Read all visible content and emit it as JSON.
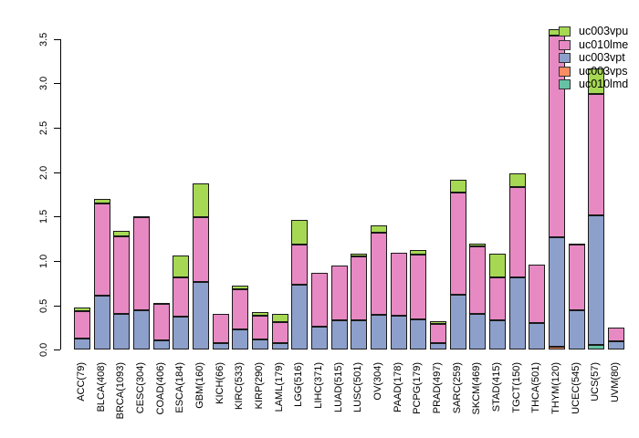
{
  "chart_data": {
    "type": "bar",
    "stacked": true,
    "title": "",
    "xlabel": "",
    "ylabel": "",
    "ylim": [
      0,
      3.5
    ],
    "ytick_labels": [
      "0.0",
      "0.5",
      "1.0",
      "1.5",
      "2.0",
      "2.5",
      "3.0",
      "3.5"
    ],
    "ytick_values": [
      0,
      0.5,
      1.0,
      1.5,
      2.0,
      2.5,
      3.0,
      3.5
    ],
    "grid": false,
    "categories": [
      "ACC(79)",
      "BLCA(408)",
      "BRCA(1093)",
      "CESC(304)",
      "COAD(406)",
      "ESCA(184)",
      "GBM(160)",
      "KICH(66)",
      "KIRC(533)",
      "KIRP(290)",
      "LAML(179)",
      "LGG(516)",
      "LIHC(371)",
      "LUAD(515)",
      "LUSC(501)",
      "OV(304)",
      "PAAD(178)",
      "PCPG(179)",
      "PRAD(497)",
      "SARC(259)",
      "SKCM(469)",
      "STAD(415)",
      "TGCT(150)",
      "THCA(501)",
      "THYM(120)",
      "UCEC(545)",
      "UCS(57)",
      "UVM(80)"
    ],
    "series": [
      {
        "name": "uc010lmd",
        "color": "#66C2A5",
        "values": [
          0,
          0,
          0,
          0,
          0,
          0,
          0,
          0,
          0,
          0,
          0,
          0,
          0,
          0,
          0,
          0,
          0,
          0,
          0,
          0,
          0,
          0,
          0,
          0,
          0,
          0,
          0.05,
          0
        ]
      },
      {
        "name": "uc003vps",
        "color": "#FC8D62",
        "values": [
          0,
          0,
          0,
          0,
          0,
          0,
          0,
          0,
          0,
          0,
          0,
          0,
          0,
          0,
          0,
          0,
          0,
          0,
          0,
          0,
          0,
          0,
          0,
          0,
          0.03,
          0,
          0,
          0
        ]
      },
      {
        "name": "uc003vpt",
        "color": "#8DA0CB",
        "values": [
          0.13,
          0.61,
          0.4,
          0.45,
          0.11,
          0.37,
          0.76,
          0.08,
          0.23,
          0.12,
          0.08,
          0.73,
          0.26,
          0.33,
          0.33,
          0.39,
          0.38,
          0.34,
          0.08,
          0.62,
          0.4,
          0.33,
          0.82,
          0.3,
          1.24,
          0.44,
          1.46,
          0.1
        ]
      },
      {
        "name": "uc010lme",
        "color": "#E78AC3",
        "values": [
          0.3,
          1.04,
          0.88,
          1.04,
          0.41,
          0.45,
          0.73,
          0.32,
          0.45,
          0.26,
          0.23,
          0.46,
          0.61,
          0.62,
          0.72,
          0.93,
          0.71,
          0.73,
          0.21,
          1.15,
          0.76,
          0.48,
          1.01,
          0.66,
          2.27,
          0.75,
          1.37,
          0.15
        ]
      },
      {
        "name": "uc003vpu",
        "color": "#A6D854",
        "values": [
          0.05,
          0.05,
          0.06,
          0.01,
          0.01,
          0.24,
          0.38,
          0,
          0.04,
          0.04,
          0.09,
          0.27,
          0,
          0,
          0.03,
          0.08,
          0,
          0.05,
          0.03,
          0.14,
          0.04,
          0.27,
          0.16,
          0,
          0.07,
          0.01,
          0.29,
          0
        ]
      }
    ],
    "legend": {
      "position": "top-right",
      "items_top_to_bottom": [
        "uc003vpu",
        "uc010lme",
        "uc003vpt",
        "uc003vps",
        "uc010lmd"
      ]
    },
    "axis_color": "#000000",
    "bar_border_color": "#1a1a1a"
  }
}
